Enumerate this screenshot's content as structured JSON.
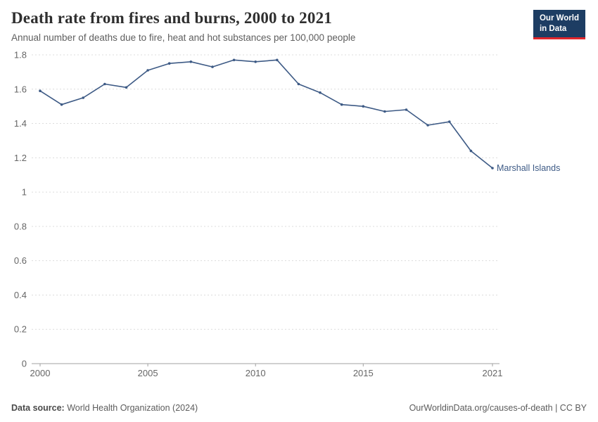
{
  "header": {
    "title": "Death rate from fires and burns, 2000 to 2021",
    "subtitle": "Annual number of deaths due to fire, heat and hot substances per 100,000 people",
    "logo": {
      "line1": "Our World",
      "line2": "in Data",
      "bg": "#1d3d63",
      "accent": "#e0262c"
    }
  },
  "chart_data": {
    "type": "line",
    "title": "Death rate from fires and burns, 2000 to 2021",
    "x": [
      2000,
      2001,
      2002,
      2003,
      2004,
      2005,
      2006,
      2007,
      2008,
      2009,
      2010,
      2011,
      2012,
      2013,
      2014,
      2015,
      2016,
      2017,
      2018,
      2019,
      2020,
      2021
    ],
    "series": [
      {
        "name": "Marshall Islands",
        "color": "#3d5a85",
        "values": [
          1.59,
          1.51,
          1.55,
          1.63,
          1.61,
          1.71,
          1.75,
          1.76,
          1.73,
          1.77,
          1.76,
          1.77,
          1.63,
          1.58,
          1.51,
          1.5,
          1.47,
          1.48,
          1.39,
          1.41,
          1.24,
          1.14
        ]
      }
    ],
    "xlabel": "",
    "ylabel": "",
    "ylim": [
      0,
      1.8
    ],
    "y_ticks": [
      0,
      0.2,
      0.4,
      0.6,
      0.8,
      1,
      1.2,
      1.4,
      1.6,
      1.8
    ],
    "y_tick_labels": [
      "0",
      "0.2",
      "0.4",
      "0.6",
      "0.8",
      "1",
      "1.2",
      "1.4",
      "1.6",
      "1.8"
    ],
    "x_ticks": [
      2000,
      2005,
      2010,
      2015,
      2021
    ],
    "x_tick_labels": [
      "2000",
      "2005",
      "2010",
      "2015",
      "2021"
    ],
    "grid": "horizontal-dashed",
    "legend_position": "end-of-line-label",
    "end_label": "Marshall Islands",
    "grid_color": "#dcdcdc",
    "axis_color": "#a1a1a1",
    "tick_text_color": "#666666"
  },
  "footer": {
    "source_label": "Data source:",
    "source_value": " World Health Organization (2024)",
    "credit": "OurWorldinData.org/causes-of-death | CC BY"
  }
}
